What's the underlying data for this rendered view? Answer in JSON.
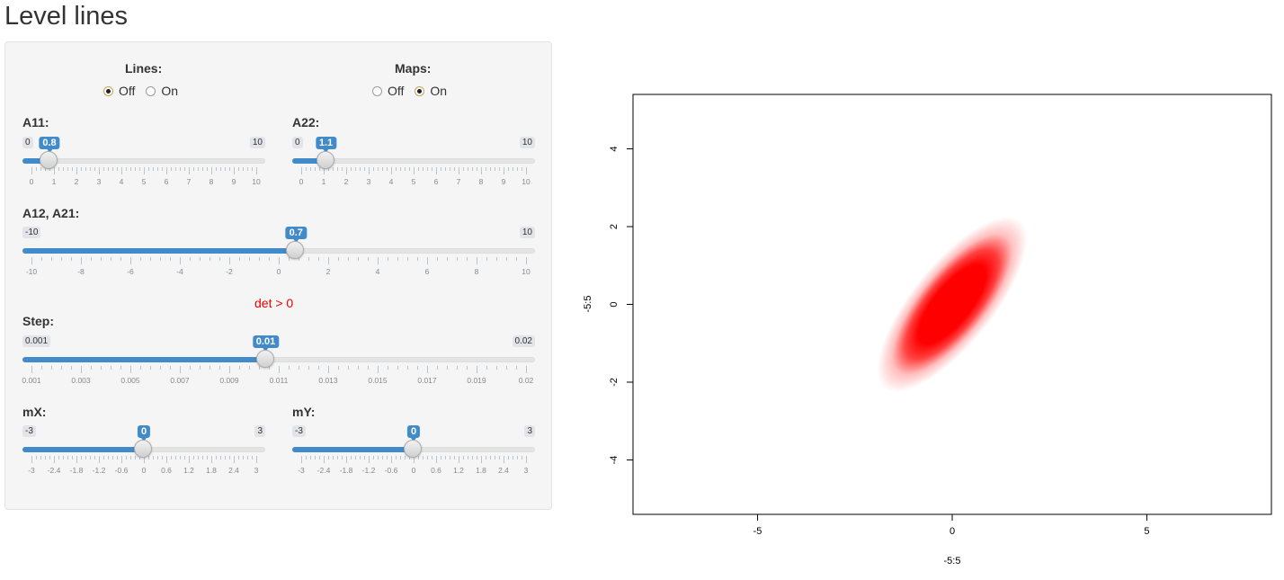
{
  "page": {
    "title": "Level lines"
  },
  "lines": {
    "label": "Lines:",
    "options": [
      "Off",
      "On"
    ],
    "selected": "Off"
  },
  "maps": {
    "label": "Maps:",
    "options": [
      "Off",
      "On"
    ],
    "selected": "On"
  },
  "sliders": [
    {
      "id": "a11",
      "label": "A11:",
      "min": 0,
      "max": 10,
      "value": 0.8,
      "min_label": "0",
      "max_label": "10",
      "value_label": "0.8",
      "tick_labels": [
        "0",
        "1",
        "2",
        "3",
        "4",
        "5",
        "6",
        "7",
        "8",
        "9",
        "10"
      ]
    },
    {
      "id": "a22",
      "label": "A22:",
      "min": 0,
      "max": 10,
      "value": 1.1,
      "min_label": "0",
      "max_label": "10",
      "value_label": "1.1",
      "tick_labels": [
        "0",
        "1",
        "2",
        "3",
        "4",
        "5",
        "6",
        "7",
        "8",
        "9",
        "10"
      ]
    },
    {
      "id": "a12",
      "label": "A12, A21:",
      "min": -10,
      "max": 10,
      "value": 0.7,
      "min_label": "-10",
      "max_label": "10",
      "value_label": "0.7",
      "tick_labels": [
        "-10",
        "-8",
        "-6",
        "-4",
        "-2",
        "0",
        "2",
        "4",
        "6",
        "8",
        "10"
      ]
    },
    {
      "id": "step",
      "label": "Step:",
      "min": 0.001,
      "max": 0.02,
      "value": 0.01,
      "min_label": "0.001",
      "max_label": "0.02",
      "value_label": "0.01",
      "tick_labels": [
        "0.001",
        "0.003",
        "0.005",
        "0.007",
        "0.009",
        "0.011",
        "0.013",
        "0.015",
        "0.017",
        "0.019",
        "0.02"
      ]
    },
    {
      "id": "mx",
      "label": "mX:",
      "min": -3,
      "max": 3,
      "value": 0,
      "min_label": "-3",
      "max_label": "3",
      "value_label": "0",
      "tick_labels": [
        "-3",
        "-2.4",
        "-1.8",
        "-1.2",
        "-0.6",
        "0",
        "0.6",
        "1.2",
        "1.8",
        "2.4",
        "3"
      ]
    },
    {
      "id": "my",
      "label": "mY:",
      "min": -3,
      "max": 3,
      "value": 0,
      "min_label": "-3",
      "max_label": "3",
      "value_label": "0",
      "tick_labels": [
        "-3",
        "-2.4",
        "-1.8",
        "-1.2",
        "-0.6",
        "0",
        "0.6",
        "1.2",
        "1.8",
        "2.4",
        "3"
      ]
    }
  ],
  "det_text": "det > 0",
  "chart_data": {
    "type": "heatmap",
    "title": "",
    "xlabel": "-5:5",
    "ylabel": "-5:5",
    "xlim": [
      -8.2,
      8.2
    ],
    "ylim": [
      -5.4,
      5.4
    ],
    "x_ticks": [
      "-5",
      "0",
      "5"
    ],
    "y_ticks": [
      "4",
      "2",
      "0",
      "-2",
      "-4"
    ],
    "fill_color": "#ff0000",
    "center": [
      0,
      0
    ],
    "matrix": [
      [
        0.8,
        0.7
      ],
      [
        0.7,
        1.1
      ]
    ],
    "grid": false
  }
}
